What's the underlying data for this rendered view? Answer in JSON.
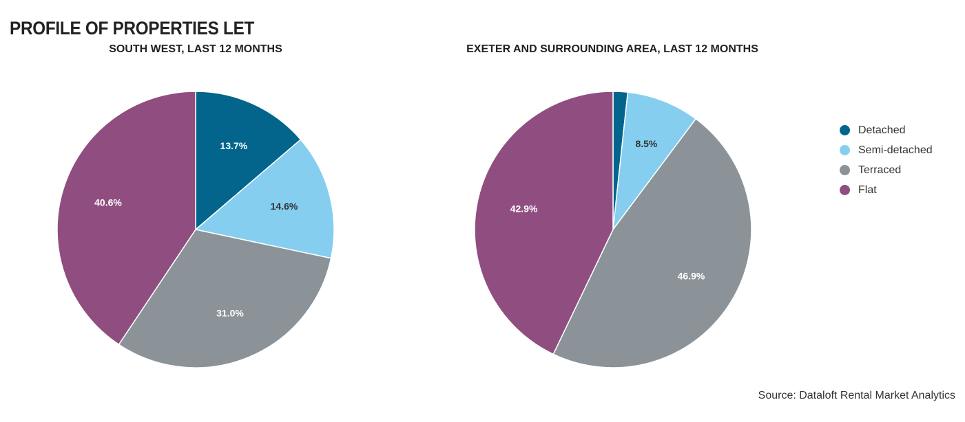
{
  "title": "PROFILE OF PROPERTIES LET",
  "source": "Source: Dataloft Rental Market Analytics",
  "colors": {
    "detached": "#03658C",
    "semi_detached": "#86CEF0",
    "terraced": "#8B9399",
    "flat": "#904E80"
  },
  "legend": [
    {
      "label": "Detached",
      "color": "#03658C"
    },
    {
      "label": "Semi-detached",
      "color": "#86CEF0"
    },
    {
      "label": "Terraced",
      "color": "#8B9399"
    },
    {
      "label": "Flat",
      "color": "#904E80"
    }
  ],
  "chart_data": [
    {
      "type": "pie",
      "title": "SOUTH WEST, LAST 12 MONTHS",
      "categories": [
        "Detached",
        "Semi-detached",
        "Terraced",
        "Flat"
      ],
      "values": [
        13.7,
        14.6,
        31.0,
        40.6
      ],
      "labels": [
        "13.7%",
        "14.6%",
        "31.0%",
        "40.6%"
      ],
      "label_colors": [
        "#ffffff",
        "#333333",
        "#ffffff",
        "#ffffff"
      ]
    },
    {
      "type": "pie",
      "title": "EXETER AND SURROUNDING AREA, LAST 12 MONTHS",
      "categories": [
        "Detached",
        "Semi-detached",
        "Terraced",
        "Flat"
      ],
      "values": [
        1.7,
        8.5,
        46.9,
        42.9
      ],
      "labels": [
        "",
        "8.5%",
        "46.9%",
        "42.9%"
      ],
      "label_colors": [
        "#ffffff",
        "#333333",
        "#ffffff",
        "#ffffff"
      ]
    }
  ]
}
